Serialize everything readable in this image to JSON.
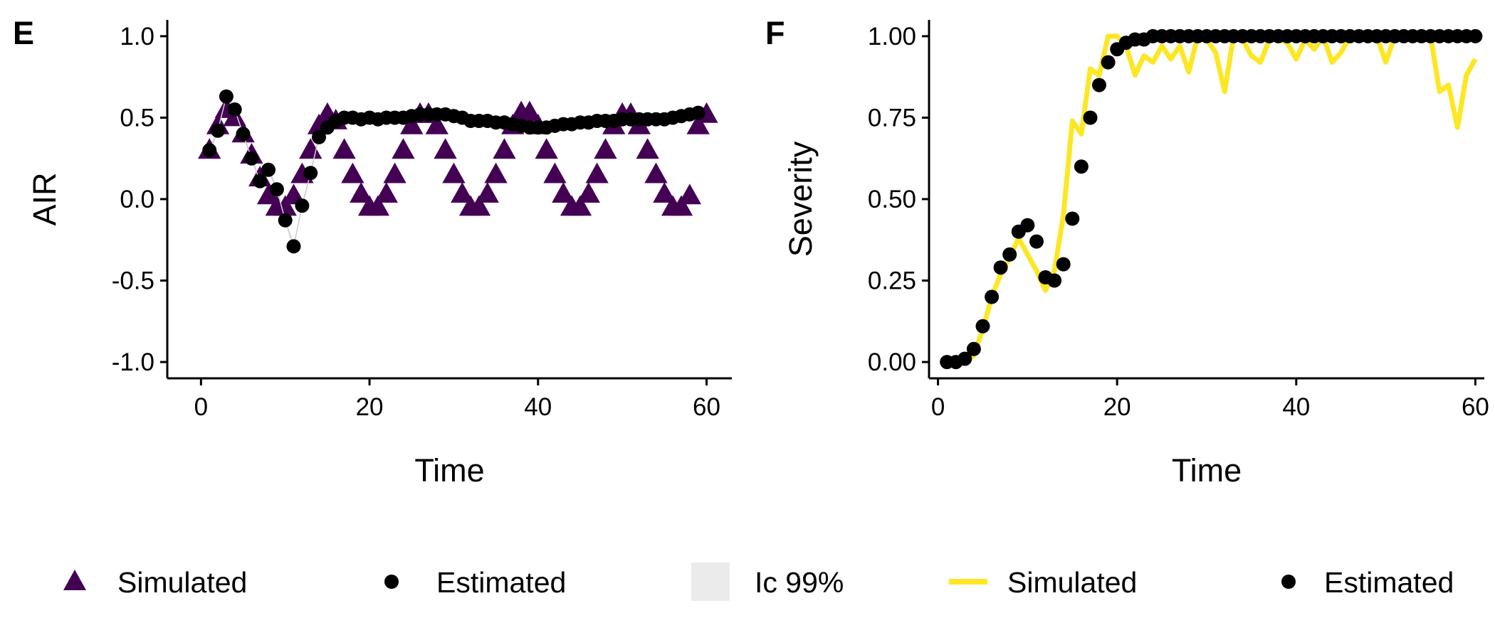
{
  "colors": {
    "simulated_air": "#440154",
    "simulated_severity": "#fde725",
    "estimated": "#000000",
    "ci_band": "#ebebeb",
    "axis": "#000000"
  },
  "chart_data": [
    {
      "panel_tag": "E",
      "type": "scatter",
      "xlabel": "Time",
      "ylabel": "AIR",
      "xlim": [
        -4,
        63
      ],
      "ylim": [
        -1.1,
        1.1
      ],
      "x_ticks": [
        0,
        20,
        40,
        60
      ],
      "x_tick_labels": [
        "0",
        "20",
        "40",
        "60"
      ],
      "y_ticks": [
        -1.0,
        -0.5,
        0.0,
        0.5,
        1.0
      ],
      "y_tick_labels": [
        "-1.0",
        "-0.5",
        "0.0",
        "0.5",
        "1.0"
      ],
      "series": [
        {
          "name": "Simulated",
          "marker": "triangle",
          "x": [
            1,
            2,
            3,
            4,
            5,
            6,
            7,
            8,
            9,
            10,
            11,
            12,
            13,
            14,
            15,
            16,
            17,
            18,
            19,
            20,
            21,
            22,
            23,
            24,
            25,
            26,
            27,
            28,
            29,
            30,
            31,
            32,
            33,
            34,
            35,
            36,
            37,
            38,
            39,
            40,
            41,
            42,
            43,
            44,
            45,
            46,
            47,
            48,
            49,
            50,
            51,
            52,
            53,
            54,
            55,
            56,
            57,
            58,
            59,
            60
          ],
          "y": [
            0.3,
            0.45,
            0.55,
            0.5,
            0.4,
            0.27,
            0.13,
            0.02,
            -0.05,
            -0.05,
            0.02,
            0.15,
            0.3,
            0.45,
            0.52,
            0.48,
            0.3,
            0.15,
            0.03,
            -0.05,
            -0.05,
            0.03,
            0.15,
            0.3,
            0.45,
            0.52,
            0.52,
            0.45,
            0.3,
            0.15,
            0.03,
            -0.05,
            -0.05,
            0.03,
            0.15,
            0.3,
            0.45,
            0.53,
            0.53,
            0.45,
            0.3,
            0.15,
            0.03,
            -0.05,
            -0.05,
            0.03,
            0.15,
            0.3,
            0.45,
            0.52,
            0.52,
            0.45,
            0.3,
            0.15,
            0.03,
            -0.05,
            -0.05,
            0.02,
            0.45,
            0.52
          ]
        },
        {
          "name": "Estimated",
          "marker": "circle",
          "x": [
            1,
            2,
            3,
            4,
            5,
            6,
            7,
            8,
            9,
            10,
            11,
            12,
            13,
            14,
            15,
            16,
            17,
            18,
            19,
            20,
            21,
            22,
            23,
            24,
            25,
            26,
            27,
            28,
            29,
            30,
            31,
            32,
            33,
            34,
            35,
            36,
            37,
            38,
            39,
            40,
            41,
            42,
            43,
            44,
            45,
            46,
            47,
            48,
            49,
            50,
            51,
            52,
            53,
            54,
            55,
            56,
            57,
            58,
            59
          ],
          "y": [
            0.3,
            0.42,
            0.63,
            0.55,
            0.4,
            0.25,
            0.11,
            0.18,
            0.06,
            -0.13,
            -0.29,
            -0.04,
            0.16,
            0.38,
            0.44,
            0.48,
            0.5,
            0.5,
            0.49,
            0.5,
            0.49,
            0.5,
            0.5,
            0.5,
            0.51,
            0.52,
            0.52,
            0.52,
            0.52,
            0.51,
            0.5,
            0.48,
            0.48,
            0.48,
            0.47,
            0.47,
            0.46,
            0.45,
            0.44,
            0.44,
            0.44,
            0.45,
            0.46,
            0.46,
            0.47,
            0.47,
            0.48,
            0.48,
            0.48,
            0.49,
            0.49,
            0.49,
            0.49,
            0.49,
            0.49,
            0.5,
            0.51,
            0.52,
            0.53
          ]
        }
      ],
      "ci_band": {
        "name": "Ic 99%",
        "half_width": 0.02
      }
    },
    {
      "panel_tag": "F",
      "type": "line",
      "xlabel": "Time",
      "ylabel": "Severity",
      "xlim": [
        -1,
        61
      ],
      "ylim": [
        -0.05,
        1.05
      ],
      "x_ticks": [
        0,
        20,
        40,
        60
      ],
      "x_tick_labels": [
        "0",
        "20",
        "40",
        "60"
      ],
      "y_ticks": [
        0.0,
        0.25,
        0.5,
        0.75,
        1.0
      ],
      "y_tick_labels": [
        "0.00",
        "0.25",
        "0.50",
        "0.75",
        "1.00"
      ],
      "series": [
        {
          "name": "Simulated",
          "marker": "line",
          "x": [
            1,
            2,
            3,
            4,
            5,
            6,
            7,
            8,
            9,
            10,
            11,
            12,
            13,
            14,
            15,
            16,
            17,
            18,
            19,
            20,
            21,
            22,
            23,
            24,
            25,
            26,
            27,
            28,
            29,
            30,
            31,
            32,
            33,
            34,
            35,
            36,
            37,
            38,
            39,
            40,
            41,
            42,
            43,
            44,
            45,
            46,
            47,
            48,
            49,
            50,
            51,
            52,
            53,
            54,
            55,
            56,
            57,
            58,
            59,
            60
          ],
          "y": [
            0.0,
            0.0,
            0.0,
            0.02,
            0.1,
            0.2,
            0.27,
            0.32,
            0.38,
            0.33,
            0.28,
            0.22,
            0.28,
            0.45,
            0.74,
            0.7,
            0.9,
            0.88,
            1.0,
            1.0,
            0.97,
            0.88,
            0.94,
            0.92,
            0.97,
            0.93,
            0.97,
            0.89,
            1.0,
            0.99,
            0.95,
            0.83,
            1.0,
            0.99,
            0.94,
            0.92,
            0.99,
            0.99,
            0.98,
            0.93,
            0.99,
            0.96,
            1.0,
            0.92,
            0.95,
            1.0,
            0.99,
            1.0,
            1.0,
            0.92,
            1.0,
            1.0,
            1.0,
            1.0,
            1.0,
            0.83,
            0.85,
            0.72,
            0.88,
            0.93
          ]
        },
        {
          "name": "Estimated",
          "marker": "circle",
          "x": [
            1,
            2,
            3,
            4,
            5,
            6,
            7,
            8,
            9,
            10,
            11,
            12,
            13,
            14,
            15,
            16,
            17,
            18,
            19,
            20,
            21,
            22,
            23,
            24,
            25,
            26,
            27,
            28,
            29,
            30,
            31,
            32,
            33,
            34,
            35,
            36,
            37,
            38,
            39,
            40,
            41,
            42,
            43,
            44,
            45,
            46,
            47,
            48,
            49,
            50,
            51,
            52,
            53,
            54,
            55,
            56,
            57,
            58,
            59,
            60
          ],
          "y": [
            0.0,
            0.0,
            0.01,
            0.04,
            0.11,
            0.2,
            0.29,
            0.33,
            0.4,
            0.42,
            0.37,
            0.26,
            0.25,
            0.3,
            0.44,
            0.6,
            0.75,
            0.85,
            0.92,
            0.96,
            0.98,
            0.99,
            0.99,
            1.0,
            1.0,
            1.0,
            1.0,
            1.0,
            1.0,
            1.0,
            1.0,
            1.0,
            1.0,
            1.0,
            1.0,
            1.0,
            1.0,
            1.0,
            1.0,
            1.0,
            1.0,
            1.0,
            1.0,
            1.0,
            1.0,
            1.0,
            1.0,
            1.0,
            1.0,
            1.0,
            1.0,
            1.0,
            1.0,
            1.0,
            1.0,
            1.0,
            1.0,
            1.0,
            1.0,
            1.0
          ]
        }
      ]
    }
  ],
  "legend": {
    "placement": "bottom",
    "items": [
      {
        "label": "Simulated",
        "marker": "triangle",
        "color": "#440154"
      },
      {
        "label": "Estimated",
        "marker": "circle",
        "color": "#000000"
      },
      {
        "label": "Ic 99%",
        "marker": "band",
        "color": "#ebebeb"
      },
      {
        "label": "Simulated",
        "marker": "line",
        "color": "#fde725"
      },
      {
        "label": "Estimated",
        "marker": "circle",
        "color": "#000000"
      }
    ]
  }
}
